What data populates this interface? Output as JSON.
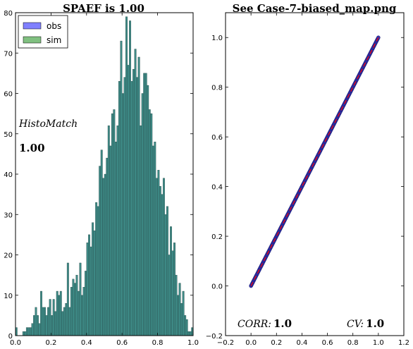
{
  "chart_data": [
    {
      "type": "bar",
      "title": "SPAEF is 1.00",
      "xlim": [
        0.0,
        1.0
      ],
      "ylim": [
        0,
        80
      ],
      "xticks": [
        "0.0",
        "0.2",
        "0.4",
        "0.6",
        "0.8",
        "1.0"
      ],
      "yticks": [
        "0",
        "10",
        "20",
        "30",
        "40",
        "50",
        "60",
        "70",
        "80"
      ],
      "legend": {
        "placement": "top-left",
        "entries": [
          "obs",
          "sim"
        ]
      },
      "annotation_label": "HistoMatch",
      "annotation_value": "1.00",
      "bin_width": 0.01,
      "colors": {
        "obs": "#8080ff",
        "sim": "#80c080",
        "overlap": "#3e8a86"
      },
      "x": [
        0.0,
        0.01,
        0.02,
        0.03,
        0.04,
        0.05,
        0.06,
        0.07,
        0.08,
        0.09,
        0.1,
        0.11,
        0.12,
        0.13,
        0.14,
        0.15,
        0.16,
        0.17,
        0.18,
        0.19,
        0.2,
        0.21,
        0.22,
        0.23,
        0.24,
        0.25,
        0.26,
        0.27,
        0.28,
        0.29,
        0.3,
        0.31,
        0.32,
        0.33,
        0.34,
        0.35,
        0.36,
        0.37,
        0.38,
        0.39,
        0.4,
        0.41,
        0.42,
        0.43,
        0.44,
        0.45,
        0.46,
        0.47,
        0.48,
        0.49,
        0.5,
        0.51,
        0.52,
        0.53,
        0.54,
        0.55,
        0.56,
        0.57,
        0.58,
        0.59,
        0.6,
        0.61,
        0.62,
        0.63,
        0.64,
        0.65,
        0.66,
        0.67,
        0.68,
        0.69,
        0.7,
        0.71,
        0.72,
        0.73,
        0.74,
        0.75,
        0.76,
        0.77,
        0.78,
        0.79,
        0.8,
        0.81,
        0.82,
        0.83,
        0.84,
        0.85,
        0.86,
        0.87,
        0.88,
        0.89,
        0.9,
        0.91,
        0.92,
        0.93,
        0.94,
        0.95,
        0.96,
        0.97,
        0.98,
        0.99
      ],
      "series": [
        {
          "name": "obs",
          "values": [
            2,
            0,
            0,
            0,
            1,
            1,
            2,
            2,
            2,
            3,
            5,
            7,
            5,
            3,
            11,
            7,
            7,
            5,
            7,
            9,
            5,
            9,
            6,
            11,
            10,
            11,
            6,
            7,
            8,
            18,
            7,
            12,
            14,
            13,
            15,
            11,
            18,
            10,
            12,
            16,
            23,
            25,
            22,
            28,
            26,
            33,
            32,
            42,
            46,
            39,
            40,
            44,
            52,
            47,
            55,
            56,
            48,
            52,
            63,
            73,
            60,
            64,
            79,
            67,
            78,
            63,
            66,
            71,
            64,
            69,
            52,
            60,
            65,
            65,
            62,
            56,
            55,
            47,
            48,
            39,
            41,
            37,
            35,
            39,
            30,
            32,
            20,
            27,
            21,
            23,
            15,
            10,
            13,
            8,
            11,
            5,
            4,
            1,
            1,
            2
          ]
        },
        {
          "name": "sim",
          "values": [
            2,
            0,
            0,
            0,
            1,
            1,
            2,
            2,
            2,
            3,
            5,
            7,
            5,
            3,
            11,
            7,
            7,
            5,
            7,
            9,
            5,
            9,
            6,
            11,
            10,
            11,
            6,
            7,
            8,
            18,
            7,
            12,
            14,
            13,
            15,
            11,
            18,
            10,
            12,
            16,
            23,
            25,
            22,
            28,
            26,
            33,
            32,
            42,
            46,
            39,
            40,
            44,
            52,
            47,
            55,
            56,
            48,
            52,
            63,
            73,
            60,
            64,
            79,
            67,
            78,
            63,
            66,
            71,
            64,
            69,
            52,
            60,
            65,
            65,
            62,
            56,
            55,
            47,
            48,
            39,
            41,
            37,
            35,
            39,
            30,
            32,
            20,
            27,
            21,
            23,
            15,
            10,
            13,
            8,
            11,
            5,
            4,
            1,
            1,
            2
          ]
        }
      ]
    },
    {
      "type": "scatter",
      "title": "See Case-7-biased_map.png",
      "xlim": [
        -0.2,
        1.2
      ],
      "ylim": [
        -0.2,
        1.1
      ],
      "xticks": [
        "−0.2",
        "0.0",
        "0.2",
        "0.4",
        "0.6",
        "0.8",
        "1.0",
        "1.2"
      ],
      "yticks": [
        "−0.2",
        "0.0",
        "0.2",
        "0.4",
        "0.6",
        "0.8",
        "1.0"
      ],
      "point_color": "#3333aa",
      "line_color": "#ff0000",
      "identity_line": {
        "x": [
          0.0,
          1.0
        ],
        "y": [
          0.0,
          1.0
        ],
        "style": "dashed"
      },
      "point_range": {
        "x": [
          0.0,
          1.0
        ],
        "y": [
          0.0,
          1.0
        ],
        "relation": "y = x"
      },
      "corr_label": "CORR:",
      "corr_value": "1.0",
      "cv_label": "CV:",
      "cv_value": "1.0"
    }
  ]
}
